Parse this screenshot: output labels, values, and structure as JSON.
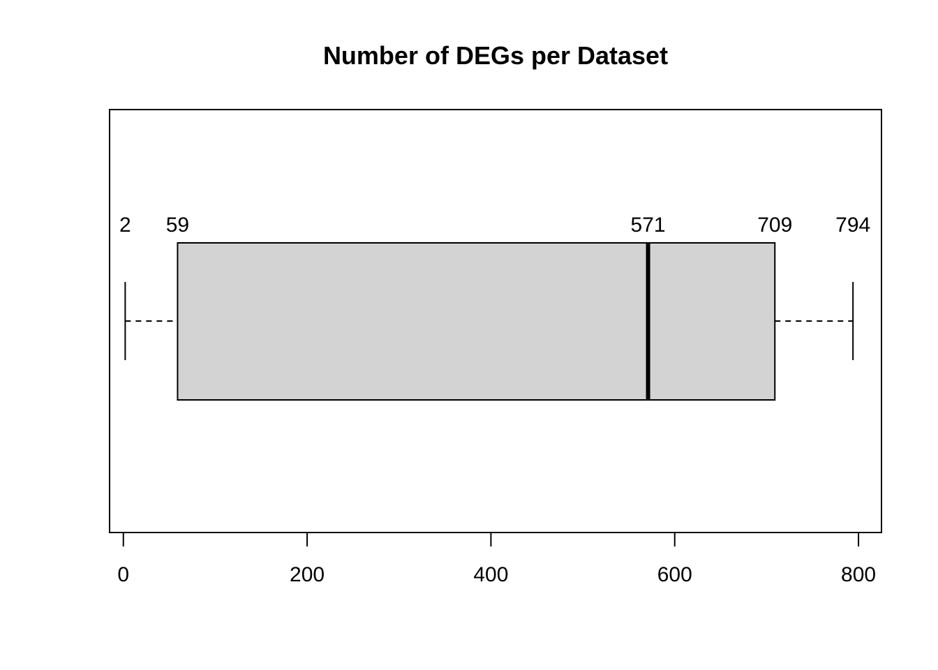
{
  "chart_data": {
    "type": "boxplot",
    "orientation": "horizontal",
    "title": "Number of DEGs per Dataset",
    "xlabel": "",
    "ylabel": "",
    "xlim": [
      -15,
      825
    ],
    "ticks": [
      0,
      200,
      400,
      600,
      800
    ],
    "tick_labels": [
      "0",
      "200",
      "400",
      "600",
      "800"
    ],
    "stats": {
      "min": 2,
      "q1": 59,
      "median": 571,
      "q3": 709,
      "max": 794
    },
    "value_labels": [
      {
        "value": 2,
        "text": "2"
      },
      {
        "value": 59,
        "text": "59"
      },
      {
        "value": 571,
        "text": "571"
      },
      {
        "value": 709,
        "text": "709"
      },
      {
        "value": 794,
        "text": "794"
      }
    ],
    "box_color": "#d3d3d3",
    "line_color": "#000000",
    "grid": false,
    "legend": "none"
  }
}
